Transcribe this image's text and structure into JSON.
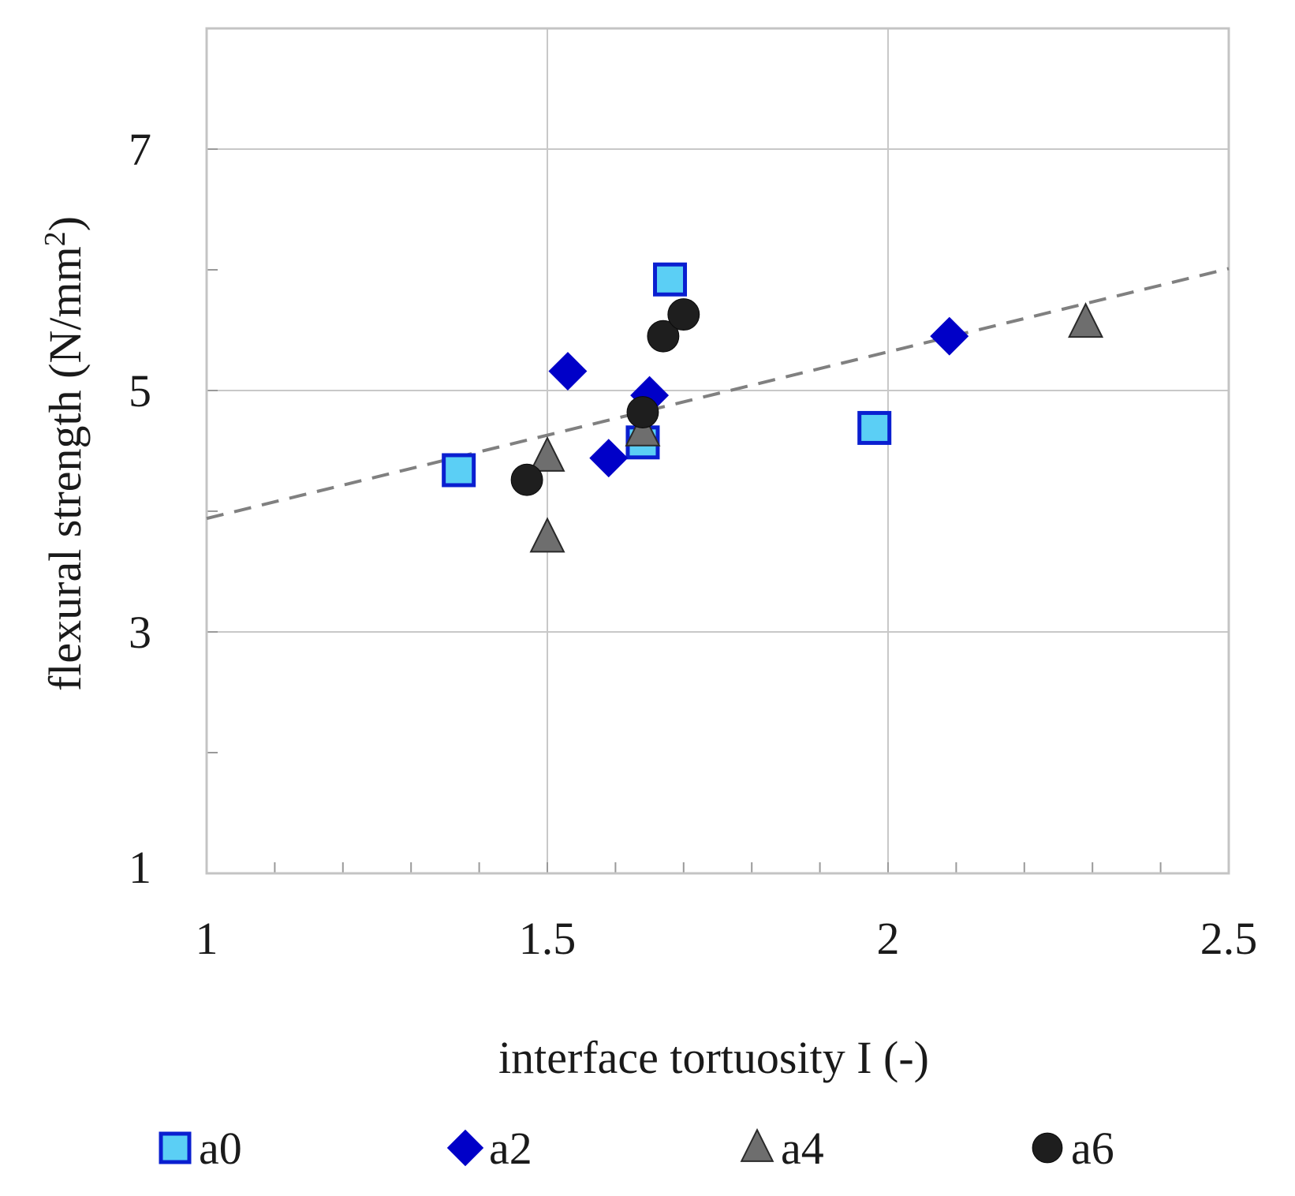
{
  "chart_data": {
    "type": "scatter",
    "xlabel": "interface tortuosity I (-)",
    "ylabel": "flexural strength (N/mm²)",
    "ylabel_parts": {
      "main": "flexural strength (N/mm",
      "superscript": "2",
      "close": ")"
    },
    "xlim": [
      1,
      2.5
    ],
    "ylim": [
      1,
      8
    ],
    "x_ticks": [
      1,
      1.5,
      2,
      2.5
    ],
    "x_tick_labels": [
      "1",
      "1.5",
      "2",
      "2.5"
    ],
    "y_ticks": [
      1,
      3,
      5,
      7
    ],
    "y_tick_labels": [
      "1",
      "3",
      "5",
      "7"
    ],
    "grid": true,
    "legend_position": "bottom",
    "series": [
      {
        "name": "a0",
        "marker": "square",
        "fill": "#5BCFF5",
        "stroke": "#0A1FD0",
        "points": [
          [
            1.37,
            4.34
          ],
          [
            1.64,
            4.57
          ],
          [
            1.68,
            5.92
          ],
          [
            1.98,
            4.69
          ]
        ]
      },
      {
        "name": "a2",
        "marker": "diamond",
        "fill": "#0000C8",
        "stroke": "#0000C8",
        "points": [
          [
            1.53,
            5.16
          ],
          [
            1.59,
            4.44
          ],
          [
            1.65,
            4.96
          ],
          [
            2.09,
            5.45
          ]
        ]
      },
      {
        "name": "a4",
        "marker": "triangle",
        "fill": "#6E6E6E",
        "stroke": "#2A2A2A",
        "points": [
          [
            1.5,
            4.45
          ],
          [
            1.5,
            3.78
          ],
          [
            1.64,
            4.66
          ],
          [
            2.29,
            5.56
          ]
        ]
      },
      {
        "name": "a6",
        "marker": "circle",
        "fill": "#1E1E1E",
        "stroke": "#0A0A0A",
        "points": [
          [
            1.47,
            4.26
          ],
          [
            1.64,
            4.82
          ],
          [
            1.67,
            5.45
          ],
          [
            1.7,
            5.63
          ]
        ]
      }
    ],
    "trendline": {
      "style": "dashed",
      "color": "#808080",
      "points": [
        [
          1,
          3.94
        ],
        [
          2.5,
          6.01
        ]
      ]
    }
  }
}
